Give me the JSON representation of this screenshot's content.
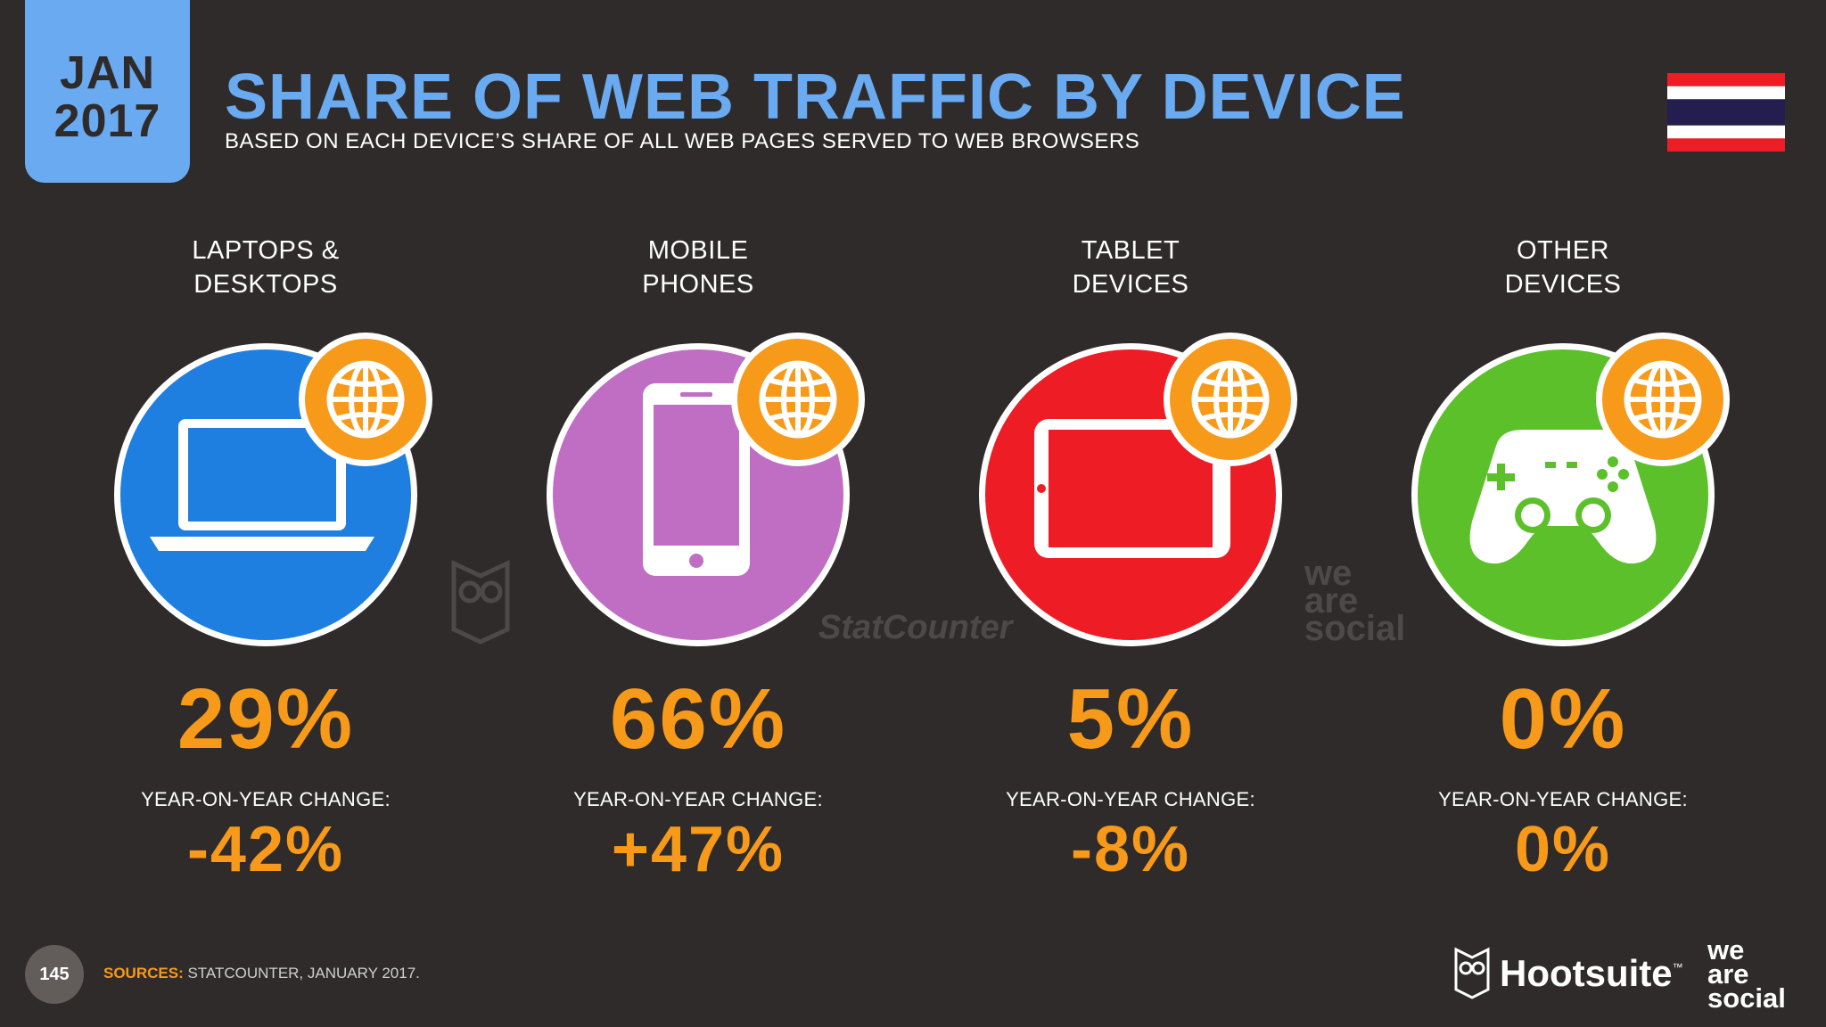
{
  "header": {
    "date_line1": "JAN",
    "date_line2": "2017",
    "title": "SHARE OF WEB TRAFFIC BY DEVICE",
    "subtitle": "BASED ON EACH DEVICE’S SHARE OF ALL WEB PAGES SERVED TO WEB BROWSERS"
  },
  "colors": {
    "background": "#2f2b2a",
    "accent_blue": "#6aaaf0",
    "accent_orange": "#f79a1a",
    "laptops": "#1f7fe0",
    "mobile": "#bf6ec4",
    "tablet": "#ee1c24",
    "other": "#5cc02a"
  },
  "chart_data": {
    "type": "table",
    "title": "SHARE OF WEB TRAFFIC BY DEVICE",
    "subtitle": "BASED ON EACH DEVICE’S SHARE OF ALL WEB PAGES SERVED TO WEB BROWSERS",
    "yoy_label": "YEAR-ON-YEAR CHANGE:",
    "categories": [
      {
        "line1": "LAPTOPS &",
        "line2": "DESKTOPS",
        "share": "29%",
        "yoy": "-42%",
        "icon": "laptop-icon",
        "color": "#1f7fe0"
      },
      {
        "line1": "MOBILE",
        "line2": "PHONES",
        "share": "66%",
        "yoy": "+47%",
        "icon": "mobile-phone-icon",
        "color": "#bf6ec4"
      },
      {
        "line1": "TABLET",
        "line2": "DEVICES",
        "share": "5%",
        "yoy": "-8%",
        "icon": "tablet-icon",
        "color": "#ee1c24"
      },
      {
        "line1": "OTHER",
        "line2": "DEVICES",
        "share": "0%",
        "yoy": "0%",
        "icon": "game-controller-icon",
        "color": "#5cc02a"
      }
    ]
  },
  "watermarks": {
    "statcounter": "StatCounter",
    "wearesocial": [
      "we",
      "are",
      "social"
    ]
  },
  "footer": {
    "page_number": "145",
    "sources_key": "SOURCES:",
    "sources_text": " STATCOUNTER, JANUARY 2017.",
    "hootsuite": "Hootsuite",
    "hootsuite_tm": "™",
    "was_logo": [
      "we",
      "are",
      "social"
    ]
  }
}
